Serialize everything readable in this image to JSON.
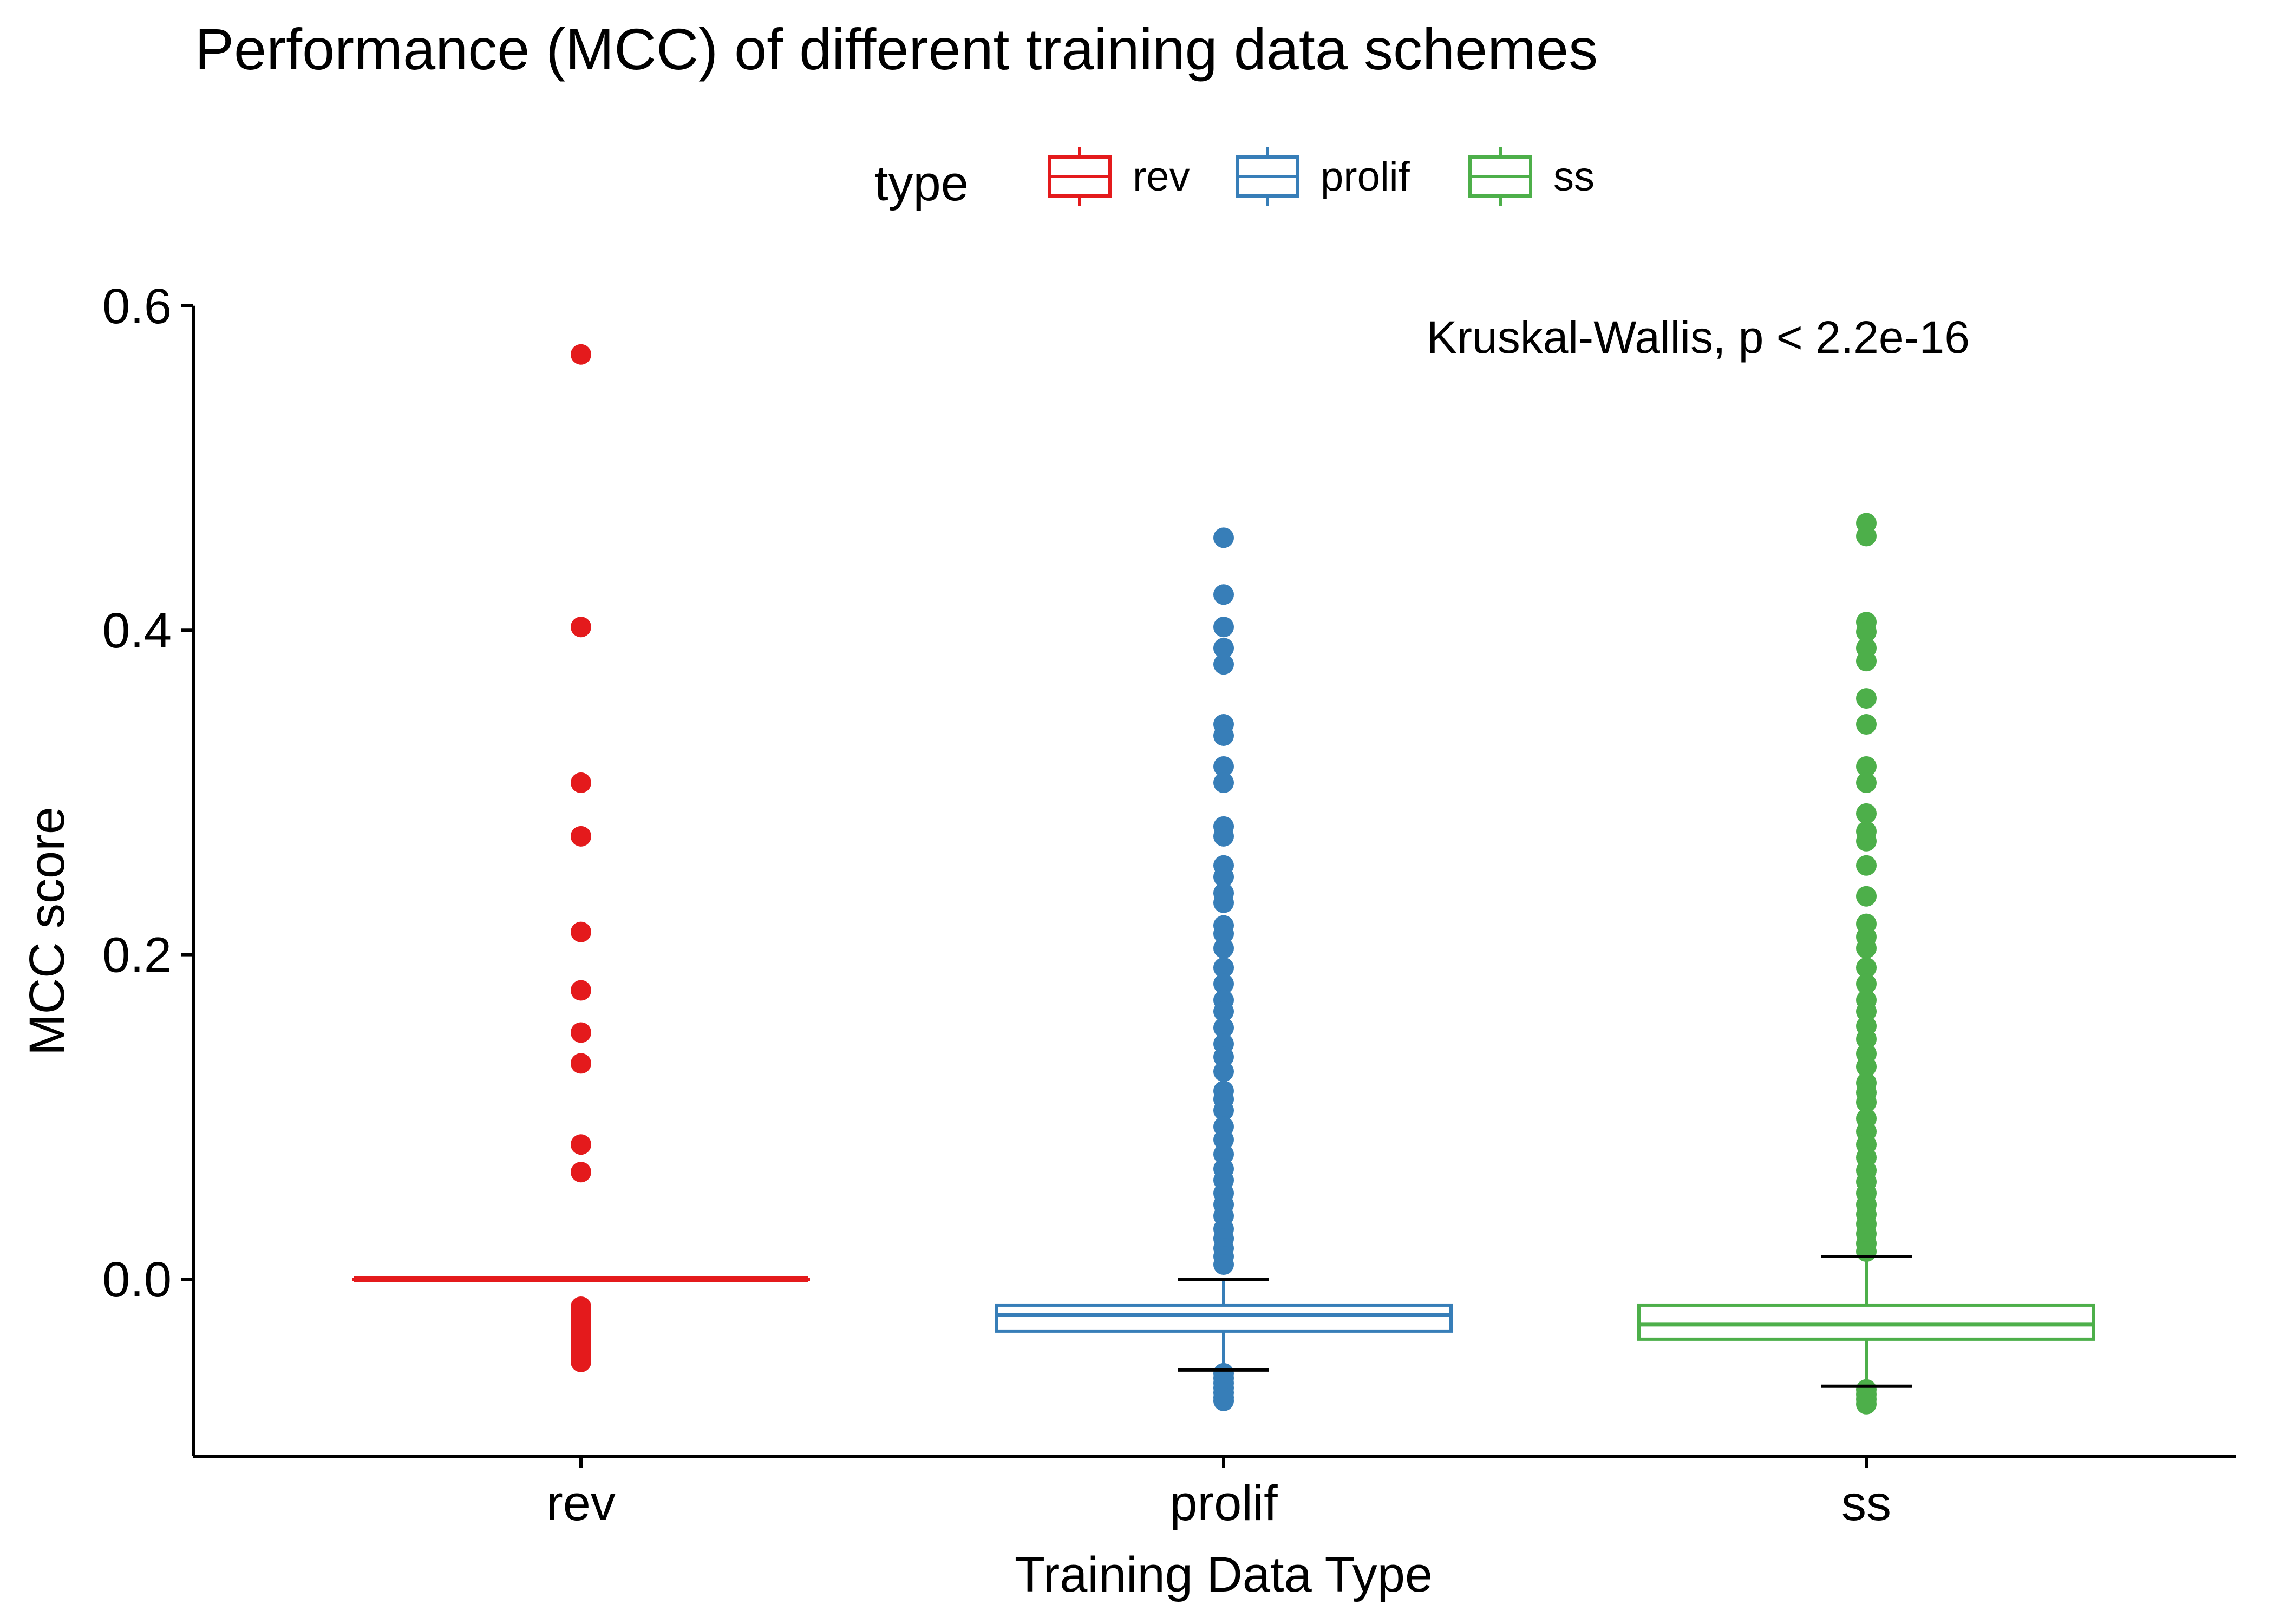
{
  "chart_data": {
    "type": "box",
    "title": "Performance (MCC) of different training data schemes",
    "xlabel": "Training Data Type",
    "ylabel": "MCC score",
    "ylim": [
      -0.11,
      0.6
    ],
    "yticks": [
      0.0,
      0.2,
      0.4,
      0.6
    ],
    "ytick_labels": [
      "0.0",
      "0.2",
      "0.4",
      "0.6"
    ],
    "grid": false,
    "legend": {
      "title": "type",
      "position": "top",
      "entries": [
        "rev",
        "prolif",
        "ss"
      ]
    },
    "annotation": "Kruskal-Wallis, p < 2.2e-16",
    "categories": [
      "rev",
      "prolif",
      "ss"
    ],
    "colors": {
      "rev": "#E41A1C",
      "prolif": "#377EB8",
      "ss": "#4DAF4A"
    },
    "series": [
      {
        "name": "rev",
        "whisker_low": 0.0,
        "q1": 0.0,
        "median": 0.0,
        "q3": 0.0,
        "whisker_high": 0.0,
        "outliers": [
          0.57,
          0.402,
          0.306,
          0.273,
          0.214,
          0.178,
          0.152,
          0.133,
          0.083,
          0.066,
          -0.017,
          -0.021,
          -0.025,
          -0.029,
          -0.033,
          -0.037,
          -0.041,
          -0.045,
          -0.049,
          -0.051
        ]
      },
      {
        "name": "prolif",
        "whisker_low": -0.056,
        "q1": -0.032,
        "median": -0.022,
        "q3": -0.016,
        "whisker_high": 0.0,
        "outliers": [
          0.457,
          0.422,
          0.402,
          0.389,
          0.379,
          0.342,
          0.335,
          0.316,
          0.306,
          0.279,
          0.273,
          0.255,
          0.248,
          0.238,
          0.232,
          0.218,
          0.213,
          0.204,
          0.192,
          0.182,
          0.172,
          0.165,
          0.155,
          0.145,
          0.137,
          0.128,
          0.116,
          0.111,
          0.104,
          0.094,
          0.086,
          0.077,
          0.068,
          0.061,
          0.053,
          0.046,
          0.039,
          0.031,
          0.025,
          0.019,
          0.014,
          0.009,
          -0.058,
          -0.061,
          -0.064,
          -0.067,
          -0.07,
          -0.073,
          -0.075
        ]
      },
      {
        "name": "ss",
        "whisker_low": -0.066,
        "q1": -0.037,
        "median": -0.028,
        "q3": -0.016,
        "whisker_high": 0.014,
        "outliers": [
          0.466,
          0.458,
          0.405,
          0.399,
          0.389,
          0.381,
          0.358,
          0.342,
          0.316,
          0.306,
          0.287,
          0.276,
          0.27,
          0.255,
          0.236,
          0.219,
          0.211,
          0.204,
          0.192,
          0.182,
          0.172,
          0.165,
          0.156,
          0.148,
          0.139,
          0.131,
          0.121,
          0.115,
          0.109,
          0.099,
          0.091,
          0.083,
          0.075,
          0.067,
          0.06,
          0.053,
          0.046,
          0.04,
          0.034,
          0.028,
          0.022,
          0.017,
          -0.068,
          -0.071,
          -0.074,
          -0.077
        ]
      }
    ]
  }
}
